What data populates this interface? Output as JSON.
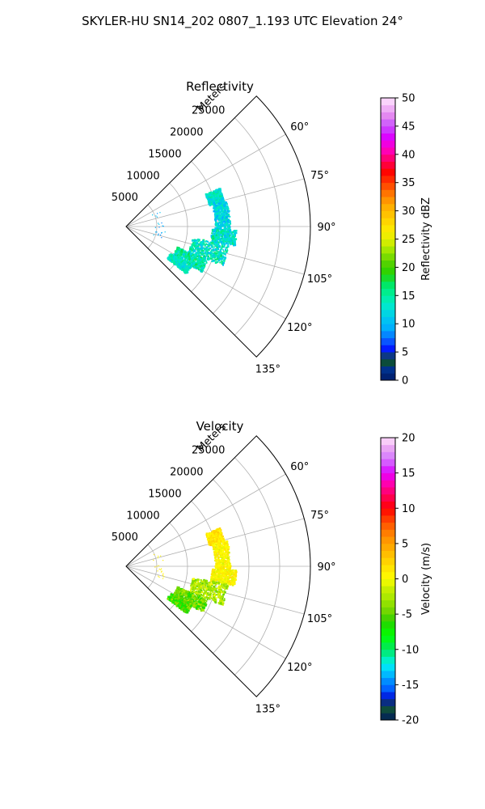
{
  "figure": {
    "title": "SKYLER-HU  SN14_202  0807_1.193 UTC Elevation 24°"
  },
  "chart_data": [
    {
      "type": "polar-sector",
      "title": "Reflectivity",
      "radial_unit_label": "Meters",
      "theta_range_deg": [
        45,
        135
      ],
      "theta_ticks": [
        "60°",
        "75°",
        "90°",
        "105°",
        "120°",
        "135°"
      ],
      "theta_tick_values": [
        60,
        75,
        90,
        105,
        120,
        135
      ],
      "r_range": [
        0,
        30000
      ],
      "r_ticks": [
        "5000",
        "10000",
        "15000",
        "20000",
        "25000"
      ],
      "r_tick_values": [
        5000,
        10000,
        15000,
        20000,
        25000
      ],
      "grid": true,
      "colorbar": {
        "label": "Reflectivity dBZ",
        "range": [
          0,
          50
        ],
        "ticks": [
          "0",
          "5",
          "10",
          "15",
          "20",
          "25",
          "30",
          "35",
          "40",
          "45",
          "50"
        ],
        "tick_values": [
          0,
          5,
          10,
          15,
          20,
          25,
          30,
          35,
          40,
          45,
          50
        ],
        "colormap": "NWSRef"
      },
      "echo_regions": [
        {
          "az": [
            68,
            76
          ],
          "r": [
            14000,
            16500
          ],
          "value_range": [
            10,
            16
          ]
        },
        {
          "az": [
            76,
            92
          ],
          "r": [
            14500,
            17000
          ],
          "value_range": [
            9,
            15
          ]
        },
        {
          "az": [
            92,
            100
          ],
          "r": [
            14000,
            18000
          ],
          "value_range": [
            10,
            17
          ]
        },
        {
          "az": [
            100,
            112
          ],
          "r": [
            11000,
            17000
          ],
          "value_range": [
            10,
            17
          ]
        },
        {
          "az": [
            112,
            121
          ],
          "r": [
            9000,
            14500
          ],
          "value_range": [
            11,
            18
          ]
        },
        {
          "az": [
            121,
            128
          ],
          "r": [
            8500,
            12500
          ],
          "value_range": [
            11,
            16
          ]
        },
        {
          "az": [
            65,
            110
          ],
          "r": [
            4500,
            6500
          ],
          "value_range": [
            8,
            11
          ],
          "sparse": true
        }
      ]
    },
    {
      "type": "polar-sector",
      "title": "Velocity",
      "radial_unit_label": "Meters",
      "theta_range_deg": [
        45,
        135
      ],
      "theta_ticks": [
        "60°",
        "75°",
        "90°",
        "105°",
        "120°",
        "135°"
      ],
      "theta_tick_values": [
        60,
        75,
        90,
        105,
        120,
        135
      ],
      "r_range": [
        0,
        30000
      ],
      "r_ticks": [
        "5000",
        "10000",
        "15000",
        "20000",
        "25000"
      ],
      "r_tick_values": [
        5000,
        10000,
        15000,
        20000,
        25000
      ],
      "grid": true,
      "colorbar": {
        "label": "Velocity (m/s)",
        "range": [
          -20,
          20
        ],
        "ticks": [
          "-20",
          "-15",
          "-10",
          "-5",
          "0",
          "5",
          "10",
          "15",
          "20"
        ],
        "tick_values": [
          -20,
          -15,
          -10,
          -5,
          0,
          5,
          10,
          15,
          20
        ],
        "colormap": "NWSVel"
      },
      "echo_regions": [
        {
          "az": [
            68,
            76
          ],
          "r": [
            14000,
            16500
          ],
          "value_range": [
            0,
            3
          ]
        },
        {
          "az": [
            76,
            92
          ],
          "r": [
            14500,
            17000
          ],
          "value_range": [
            -1,
            2
          ]
        },
        {
          "az": [
            92,
            100
          ],
          "r": [
            14000,
            18000
          ],
          "value_range": [
            -1,
            2
          ]
        },
        {
          "az": [
            100,
            112
          ],
          "r": [
            11000,
            17000
          ],
          "value_range": [
            -5,
            0
          ]
        },
        {
          "az": [
            112,
            121
          ],
          "r": [
            9000,
            14500
          ],
          "value_range": [
            -7,
            -2
          ]
        },
        {
          "az": [
            121,
            128
          ],
          "r": [
            8500,
            12500
          ],
          "value_range": [
            -8,
            -3
          ]
        },
        {
          "az": [
            65,
            110
          ],
          "r": [
            4500,
            6500
          ],
          "value_range": [
            0,
            2
          ],
          "sparse": true
        }
      ]
    }
  ]
}
